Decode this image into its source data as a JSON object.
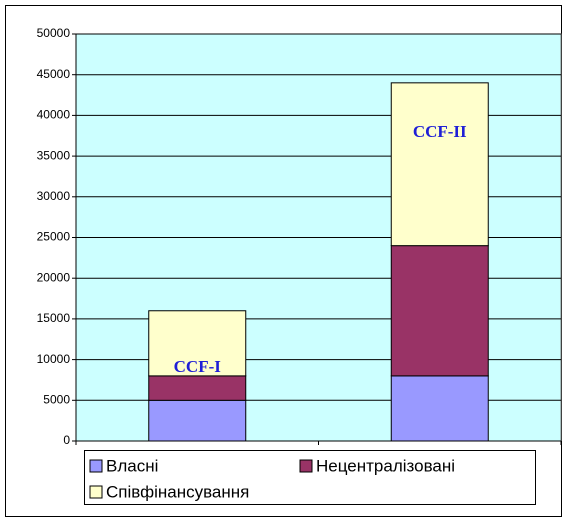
{
  "chart_data": {
    "type": "stacked_bar",
    "categories": [
      null,
      null
    ],
    "series": [
      {
        "name": "Власні",
        "color": "#9999ff",
        "values": [
          5000,
          8000
        ]
      },
      {
        "name": "Нецентралізовані",
        "color": "#993366",
        "values": [
          3000,
          16000
        ]
      },
      {
        "name": "Співфінансування",
        "color": "#ffffcc",
        "values": [
          8000,
          20000
        ]
      }
    ],
    "annotations": [
      "CCF-I",
      "CCF-II"
    ],
    "ylim": [
      0,
      50000
    ],
    "yticks": [
      0,
      5000,
      10000,
      15000,
      20000,
      25000,
      30000,
      35000,
      40000,
      45000,
      50000
    ],
    "grid": true,
    "legend": "bottom"
  }
}
